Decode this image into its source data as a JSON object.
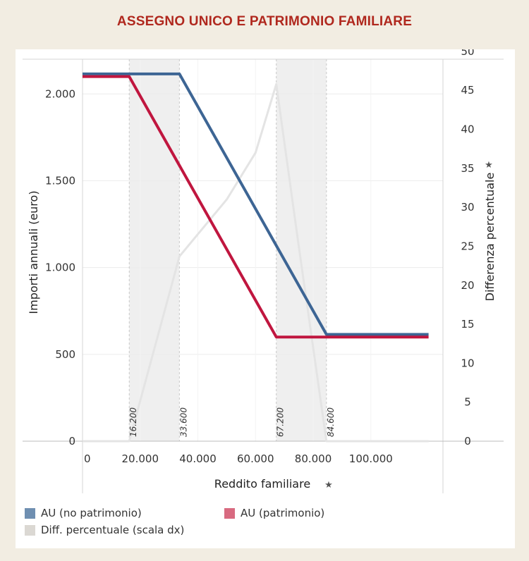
{
  "title": "ASSEGNO UNICO E PATRIMONIO FAMILIARE",
  "chart_data": {
    "type": "line",
    "xlabel": "Reddito familiare",
    "ylabel_left": "Importi annuali (euro)",
    "ylabel_right": "Differenza percentuale",
    "x_ticks": [
      0,
      20000,
      40000,
      60000,
      80000,
      100000
    ],
    "x_tick_labels": [
      "0",
      "20.000",
      "40.000",
      "60.000",
      "80.000",
      "100.000"
    ],
    "y_left_ticks": [
      0,
      500,
      1000,
      1500,
      2000
    ],
    "y_left_tick_labels": [
      "0",
      "500",
      "1.000",
      "1.500",
      "2.000"
    ],
    "y_right_ticks": [
      0,
      5,
      10,
      15,
      20,
      25,
      30,
      35,
      40,
      45,
      50
    ],
    "y_right_tick_labels": [
      "0",
      "5",
      "10",
      "15",
      "20",
      "25",
      "30",
      "35",
      "40",
      "45",
      "50"
    ],
    "xlim": [
      0,
      125000
    ],
    "ylim_left": [
      0,
      2200
    ],
    "ylim_right": [
      0,
      49
    ],
    "shaded_bands": [
      [
        16200,
        33600
      ],
      [
        67200,
        84600
      ]
    ],
    "reference_lines": [
      {
        "x": 16200,
        "label": "16.200"
      },
      {
        "x": 33600,
        "label": "33.600"
      },
      {
        "x": 67200,
        "label": "67.200"
      },
      {
        "x": 84600,
        "label": "84.600"
      }
    ],
    "series": [
      {
        "name": "AU (no patrimonio)",
        "axis": "left",
        "color": "#3d6594",
        "x": [
          0,
          33600,
          84600,
          120000
        ],
        "y": [
          2115,
          2115,
          615,
          615
        ]
      },
      {
        "name": "AU (patrimonio)",
        "axis": "left",
        "color": "#c0163f",
        "x": [
          0,
          16200,
          67200,
          120000
        ],
        "y": [
          2100,
          2100,
          600,
          600
        ]
      },
      {
        "name": "Diff. percentuale (scala dx)",
        "axis": "right",
        "color": "#e4e4e4",
        "x": [
          0,
          16200,
          33600,
          50000,
          60000,
          67200,
          75000,
          84600,
          120000
        ],
        "y": [
          0,
          0,
          23.7,
          31,
          37,
          45.8,
          25,
          0,
          0
        ]
      }
    ]
  },
  "legend": [
    {
      "label": "AU (no patrimonio)",
      "color": "#6f8fb1"
    },
    {
      "label": "AU (patrimonio)",
      "color": "#d86a80"
    },
    {
      "label": "Diff. percentuale (scala dx)",
      "color": "#dbd8d3"
    }
  ]
}
